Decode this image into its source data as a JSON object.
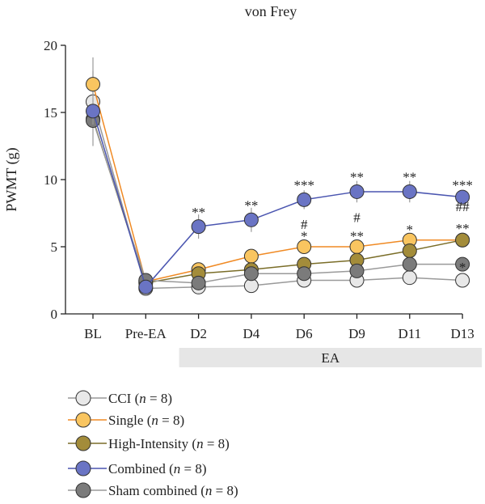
{
  "chart_data": {
    "type": "line",
    "title": "von Frey",
    "xlabel": "",
    "ylabel": "PWMT (g)",
    "ylim": [
      0,
      20
    ],
    "yticks": [
      0,
      5,
      10,
      15,
      20
    ],
    "categories": [
      "BL",
      "Pre-EA",
      "D2",
      "D4",
      "D6",
      "D9",
      "D11",
      "D13"
    ],
    "span_label": {
      "text": "EA",
      "from": "D2",
      "to": "D13"
    },
    "series": [
      {
        "name": "CCI (n = 8)",
        "name_prefix": "CCI (",
        "name_italic": "n",
        "name_suffix": " = 8)",
        "color": "#e8e8e8",
        "line_color": "#999999",
        "values": [
          15.8,
          1.9,
          2.0,
          2.1,
          2.5,
          2.5,
          2.7,
          2.5
        ],
        "errors": [
          3.3,
          0.2,
          0.3,
          0.4,
          0.3,
          0.4,
          0.4,
          0.3
        ]
      },
      {
        "name": "Single (n = 8)",
        "name_prefix": "Single (",
        "name_italic": "n",
        "name_suffix": " = 8)",
        "color": "#f9c560",
        "line_color": "#f08a24",
        "values": [
          17.1,
          2.4,
          3.3,
          4.3,
          5.0,
          5.0,
          5.5,
          5.5
        ],
        "errors": [
          1.0,
          0.2,
          0.4,
          0.4,
          0.5,
          0.5,
          0.5,
          0.4
        ]
      },
      {
        "name": "High-Intensity (n = 8)",
        "name_prefix": "High-Intensity (",
        "name_italic": "n",
        "name_suffix": " = 8)",
        "color": "#a38c3a",
        "line_color": "#7a6d28",
        "values": [
          14.5,
          2.3,
          3.0,
          3.3,
          3.7,
          4.0,
          4.7,
          5.5
        ],
        "errors": [
          0.7,
          0.2,
          0.3,
          0.3,
          0.4,
          0.5,
          0.5,
          0.4
        ]
      },
      {
        "name": "Combined (n = 8)",
        "name_prefix": "Combined (",
        "name_italic": "n",
        "name_suffix": " = 8)",
        "color": "#6a74c4",
        "line_color": "#4a55b0",
        "values": [
          15.1,
          2.0,
          6.5,
          7.0,
          8.5,
          9.1,
          9.1,
          8.7
        ],
        "errors": [
          1.0,
          0.3,
          0.9,
          0.9,
          0.7,
          0.8,
          0.8,
          0.5
        ]
      },
      {
        "name": "Sham combined (n = 8)",
        "name_prefix": "Sham combined (",
        "name_italic": "n",
        "name_suffix": " = 8)",
        "color": "#7b7b7b",
        "line_color": "#9a9a9a",
        "values": [
          14.4,
          2.5,
          2.3,
          3.0,
          3.0,
          3.2,
          3.7,
          3.7
        ],
        "errors": [
          0.5,
          0.2,
          0.3,
          0.3,
          0.3,
          0.4,
          0.4,
          0.4
        ]
      }
    ],
    "annotations": [
      {
        "category": "D2",
        "value": 7.6,
        "text": "**"
      },
      {
        "category": "D4",
        "value": 8.1,
        "text": "**"
      },
      {
        "category": "D6",
        "value": 9.6,
        "text": "***"
      },
      {
        "category": "D6",
        "value": 6.7,
        "text": "#"
      },
      {
        "category": "D6",
        "value": 5.8,
        "text": "*"
      },
      {
        "category": "D9",
        "value": 10.2,
        "text": "**"
      },
      {
        "category": "D9",
        "value": 7.2,
        "text": "#"
      },
      {
        "category": "D9",
        "value": 5.8,
        "text": "**"
      },
      {
        "category": "D11",
        "value": 10.2,
        "text": "**"
      },
      {
        "category": "D11",
        "value": 6.3,
        "text": "*"
      },
      {
        "category": "D13",
        "value": 9.6,
        "text": "***"
      },
      {
        "category": "D13",
        "value": 8.0,
        "text": "##"
      },
      {
        "category": "D13",
        "value": 6.4,
        "text": "**"
      },
      {
        "category": "D13",
        "value": 3.5,
        "text": "*"
      }
    ],
    "legend_position": "bottom-left",
    "grid": false
  }
}
